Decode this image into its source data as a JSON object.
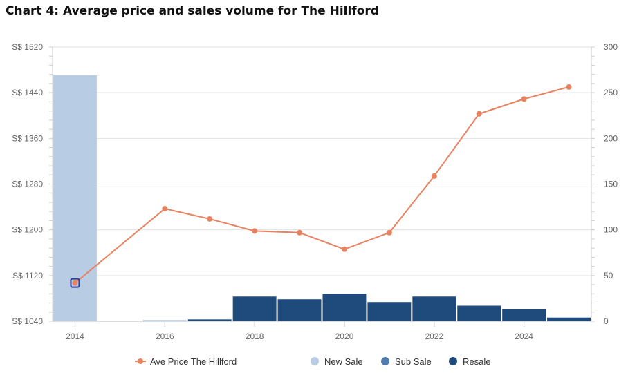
{
  "chart_data": {
    "type": "bar",
    "title": "Chart 4: Average price and sales volume for The Hillford",
    "x": [
      2014,
      2015,
      2016,
      2017,
      2018,
      2019,
      2020,
      2021,
      2022,
      2023,
      2024,
      2025
    ],
    "x_ticks": [
      "2014",
      "2016",
      "2018",
      "2020",
      "2022",
      "2024"
    ],
    "y_left": {
      "ticks": [
        "S$ 1040",
        "S$ 1120",
        "S$ 1200",
        "S$ 1280",
        "S$ 1360",
        "S$ 1440",
        "S$ 1520"
      ],
      "min": 1040,
      "max": 1520
    },
    "y_right": {
      "ticks": [
        "0",
        "50",
        "100",
        "150",
        "200",
        "250",
        "300"
      ],
      "min": 0,
      "max": 300
    },
    "series": [
      {
        "name": "Ave Price The Hillford",
        "kind": "line",
        "axis": "left",
        "color": "#E8825F",
        "points": [
          [
            2014,
            1107
          ],
          [
            2016,
            1237
          ],
          [
            2017,
            1219
          ],
          [
            2018,
            1198
          ],
          [
            2019,
            1195
          ],
          [
            2020,
            1166
          ],
          [
            2021,
            1195
          ],
          [
            2022,
            1294
          ],
          [
            2023,
            1403
          ],
          [
            2024,
            1429
          ],
          [
            2025,
            1450
          ]
        ]
      },
      {
        "name": "New Sale",
        "kind": "bar",
        "axis": "right",
        "color": "#B8CCE4",
        "values": [
          269,
          0,
          0,
          0,
          0,
          0,
          0,
          0,
          0,
          0,
          0,
          0
        ]
      },
      {
        "name": "Sub Sale",
        "kind": "bar",
        "axis": "right",
        "color": "#4F7BB0",
        "values": [
          0,
          0,
          1,
          0,
          0,
          0,
          0,
          0,
          0,
          0,
          0,
          0
        ]
      },
      {
        "name": "Resale",
        "kind": "bar",
        "axis": "right",
        "color": "#1F4A7C",
        "values": [
          0,
          0,
          0,
          2,
          27,
          24,
          30,
          21,
          27,
          17,
          13,
          4
        ]
      }
    ],
    "legend_position": "bottom",
    "grid": true
  }
}
